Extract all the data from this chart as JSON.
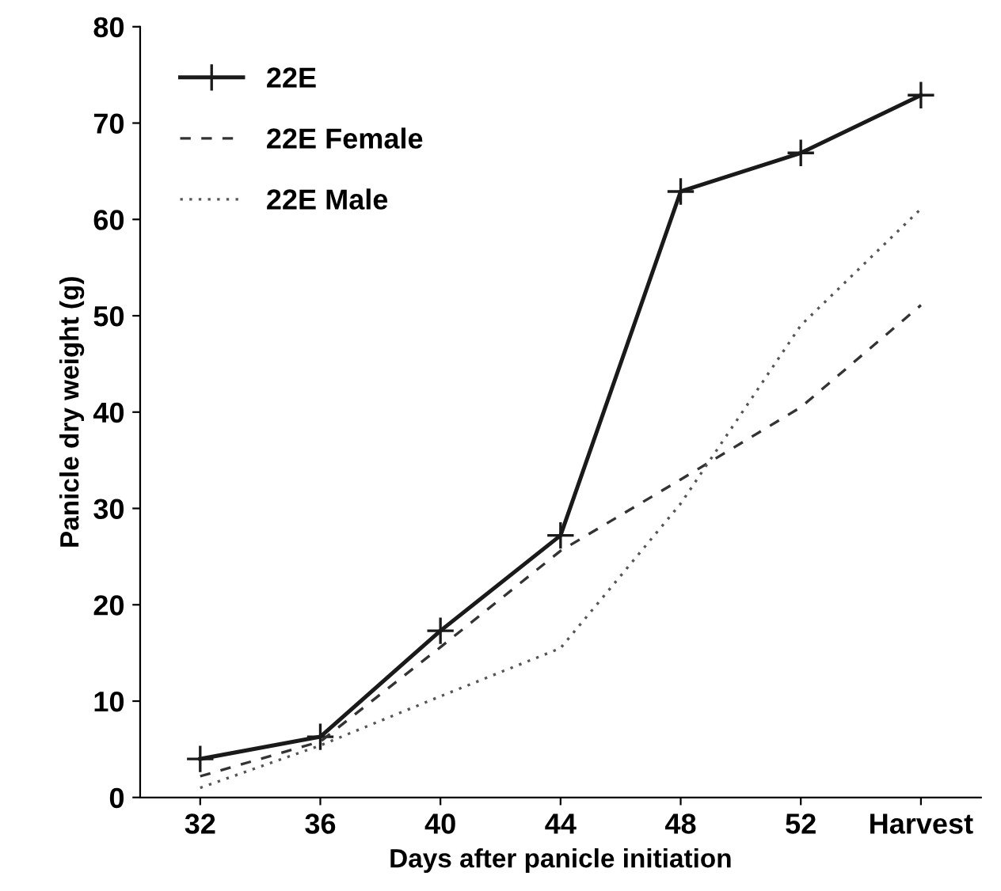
{
  "chart_data": {
    "type": "line",
    "xlabel": "Days after panicle initiation",
    "ylabel": "Panicle dry weight (g)",
    "categories": [
      "32",
      "36",
      "40",
      "44",
      "48",
      "52",
      "Harvest"
    ],
    "series": [
      {
        "name": "22E",
        "color": "#1a1a1a",
        "values": [
          4.0,
          6.3,
          17.3,
          27.2,
          62.9,
          66.9,
          72.9
        ],
        "line_style": "solid",
        "marker": "cross"
      },
      {
        "name": "22E Female",
        "color": "#333333",
        "values": [
          2.2,
          5.8,
          15.6,
          25.6,
          33,
          40.5,
          51.1
        ],
        "line_style": "dashed",
        "marker": "none"
      },
      {
        "name": "22E Male",
        "color": "#555555",
        "values": [
          1.0,
          5.4,
          10.5,
          15.5,
          30.5,
          49.0,
          61.1
        ],
        "line_style": "dotted",
        "marker": "none"
      }
    ],
    "ylim": [
      0,
      80
    ],
    "yticks": [
      0,
      10,
      20,
      30,
      40,
      50,
      60,
      70,
      80
    ],
    "grid": false,
    "legend": "top left"
  }
}
